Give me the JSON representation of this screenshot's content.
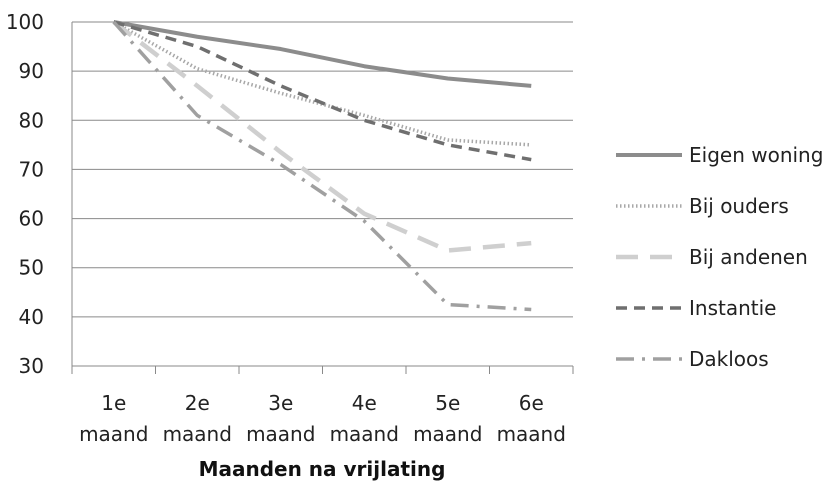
{
  "chart_data": {
    "type": "line",
    "xlabel": "Maanden na vrijlating",
    "ylabel": "",
    "ylim": [
      30,
      100
    ],
    "yticks": [
      30,
      40,
      50,
      60,
      70,
      80,
      90,
      100
    ],
    "grid": true,
    "legend_position": "right",
    "categories": [
      {
        "line1": "1e",
        "line2": "maand"
      },
      {
        "line1": "2e",
        "line2": "maand"
      },
      {
        "line1": "3e",
        "line2": "maand"
      },
      {
        "line1": "4e",
        "line2": "maand"
      },
      {
        "line1": "5e",
        "line2": "maand"
      },
      {
        "line1": "6e",
        "line2": "maand"
      }
    ],
    "series": [
      {
        "name": "Eigen woning",
        "values": [
          100,
          97,
          94.5,
          91,
          88.5,
          87
        ],
        "color": "#8c8c8c",
        "dash": "solid"
      },
      {
        "name": "Bij ouders",
        "values": [
          100,
          90.5,
          85.5,
          81,
          76,
          75
        ],
        "color": "#a8a8a8",
        "dash": "dotted"
      },
      {
        "name": "Bij andenen",
        "values": [
          100,
          87,
          73.5,
          61,
          53.5,
          55
        ],
        "color": "#cfcfcf",
        "dash": "long-dash"
      },
      {
        "name": "Instantie",
        "values": [
          100,
          95,
          87,
          80,
          75,
          72
        ],
        "color": "#6f6f6f",
        "dash": "dash"
      },
      {
        "name": "Dakloos",
        "values": [
          100,
          81,
          71,
          59.5,
          42.5,
          41.5
        ],
        "color": "#a0a0a0",
        "dash": "dash-dot"
      }
    ]
  }
}
